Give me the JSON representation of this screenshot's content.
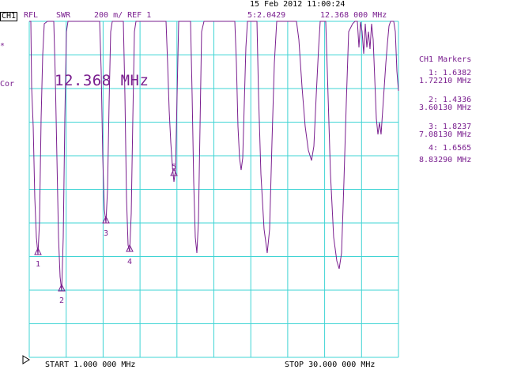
{
  "header": {
    "date_time": "15 Feb 2012   11:00:24",
    "channel": "CH1",
    "mode": "RFL",
    "format": "SWR",
    "scale_ref": "200 m/ REF 1",
    "marker5_readout": "5:2.0429",
    "marker5_freq": "12.368 000 MHz"
  },
  "left_indicators": {
    "star": "*",
    "cor": "Cor"
  },
  "active_marker_display": "12.368 MHz",
  "marker_panel": {
    "title": "CH1 Markers",
    "items": [
      {
        "value": "1: 1.6382",
        "freq": "1.72210 MHz"
      },
      {
        "value": "2: 1.4336",
        "freq": "3.60130 MHz"
      },
      {
        "value": "3: 1.8237",
        "freq": "7.08130 MHz"
      },
      {
        "value": "4: 1.6565",
        "freq": "8.83290 MHz"
      }
    ]
  },
  "footer": {
    "start": "START  1.000 000 MHz",
    "stop": "STOP  30.000 000 MHz"
  },
  "trace_labels": [
    "1",
    "2",
    "3",
    "4",
    "5"
  ],
  "colors": {
    "grid": "#3fd4d4",
    "trace": "#7a1f8f",
    "text": "#000000"
  }
}
